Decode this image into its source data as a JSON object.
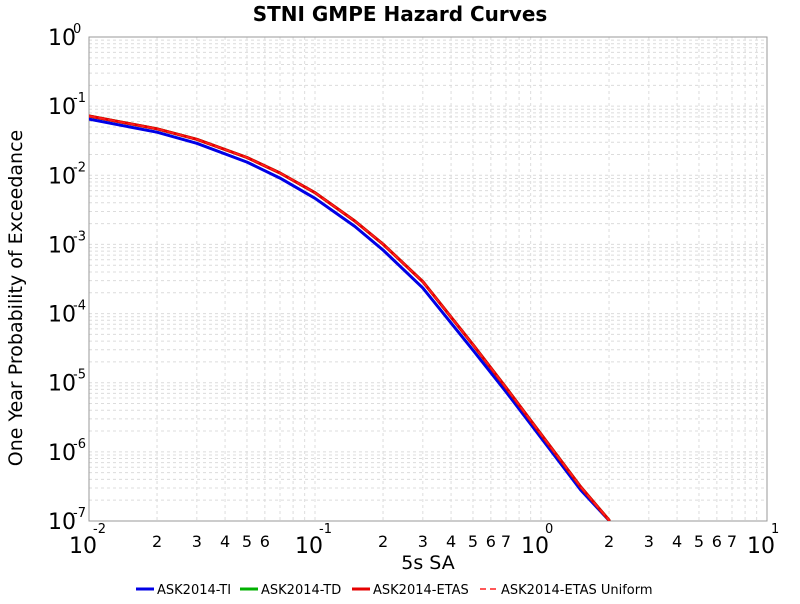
{
  "chart_data": {
    "type": "line",
    "title": "STNI GMPE Hazard Curves",
    "xlabel": "5s SA",
    "ylabel": "One Year Probability of Exceedance",
    "x_scale": "log",
    "y_scale": "log",
    "xlim": [
      0.01,
      10
    ],
    "ylim": [
      1e-07,
      1
    ],
    "grid": true,
    "legend_position": "bottom",
    "x_major_ticks": [
      {
        "value": 0.01,
        "base": "10",
        "exp": "-2"
      },
      {
        "value": 0.1,
        "base": "10",
        "exp": "-1"
      },
      {
        "value": 1,
        "base": "10",
        "exp": "0"
      },
      {
        "value": 10,
        "base": "10",
        "exp": "1"
      }
    ],
    "x_minor_ticks": [
      {
        "value": 0.02,
        "label": "2"
      },
      {
        "value": 0.03,
        "label": "3"
      },
      {
        "value": 0.04,
        "label": "4"
      },
      {
        "value": 0.05,
        "label": "5"
      },
      {
        "value": 0.06,
        "label": "6"
      },
      {
        "value": 0.2,
        "label": "2"
      },
      {
        "value": 0.3,
        "label": "3"
      },
      {
        "value": 0.4,
        "label": "4"
      },
      {
        "value": 0.5,
        "label": "5"
      },
      {
        "value": 0.6,
        "label": "6"
      },
      {
        "value": 0.7,
        "label": "7"
      },
      {
        "value": 2,
        "label": "2"
      },
      {
        "value": 3,
        "label": "3"
      },
      {
        "value": 4,
        "label": "4"
      },
      {
        "value": 5,
        "label": "5"
      },
      {
        "value": 6,
        "label": "6"
      },
      {
        "value": 7,
        "label": "7"
      }
    ],
    "y_major_ticks": [
      {
        "value": 1,
        "base": "10",
        "exp": "0"
      },
      {
        "value": 0.1,
        "base": "10",
        "exp": "-1"
      },
      {
        "value": 0.01,
        "base": "10",
        "exp": "-2"
      },
      {
        "value": 0.001,
        "base": "10",
        "exp": "-3"
      },
      {
        "value": 0.0001,
        "base": "10",
        "exp": "-4"
      },
      {
        "value": 1e-05,
        "base": "10",
        "exp": "-5"
      },
      {
        "value": 1e-06,
        "base": "10",
        "exp": "-6"
      },
      {
        "value": 1e-07,
        "base": "10",
        "exp": "-7"
      }
    ],
    "series": [
      {
        "name": "ASK2014-TI",
        "color": "#0000e6",
        "style": "solid",
        "x": [
          0.01,
          0.02,
          0.03,
          0.05,
          0.07,
          0.1,
          0.15,
          0.2,
          0.3,
          0.5,
          0.7,
          1.0,
          1.5,
          2.0
        ],
        "y": [
          0.065,
          0.042,
          0.029,
          0.0155,
          0.0091,
          0.00465,
          0.00182,
          0.00083,
          0.000235,
          2.95e-05,
          7.4e-06,
          1.6e-06,
          2.8e-07,
          1.02e-07
        ]
      },
      {
        "name": "ASK2014-TD",
        "color": "#00b000",
        "style": "solid",
        "x": [
          0.01,
          0.02,
          0.03,
          0.05,
          0.07,
          0.1,
          0.15,
          0.2,
          0.3,
          0.5,
          0.7,
          1.0,
          1.5,
          2.0
        ],
        "y": [
          0.072,
          0.047,
          0.0332,
          0.0181,
          0.0108,
          0.0056,
          0.00218,
          0.00101,
          0.00029,
          3.55e-05,
          8.5e-06,
          1.8e-06,
          3.1e-07,
          1.03e-07
        ]
      },
      {
        "name": "ASK2014-ETAS",
        "color": "#e60000",
        "style": "solid",
        "x": [
          0.01,
          0.02,
          0.03,
          0.05,
          0.07,
          0.1,
          0.15,
          0.2,
          0.3,
          0.5,
          0.7,
          1.0,
          1.5,
          2.0
        ],
        "y": [
          0.072,
          0.047,
          0.0332,
          0.0181,
          0.0108,
          0.0056,
          0.00218,
          0.00101,
          0.00029,
          3.55e-05,
          8.5e-06,
          1.8e-06,
          3.1e-07,
          1.03e-07
        ]
      },
      {
        "name": "ASK2014-ETAS Uniform",
        "color": "#ff2020",
        "style": "dashed",
        "x": [
          0.01,
          0.02,
          0.03,
          0.05,
          0.07,
          0.1,
          0.15,
          0.2,
          0.3,
          0.5,
          0.7,
          1.0,
          1.5,
          2.0
        ],
        "y": [
          0.072,
          0.047,
          0.0332,
          0.0181,
          0.0108,
          0.0056,
          0.00218,
          0.00101,
          0.00029,
          3.55e-05,
          8.5e-06,
          1.8e-06,
          3.1e-07,
          1.03e-07
        ]
      }
    ]
  }
}
